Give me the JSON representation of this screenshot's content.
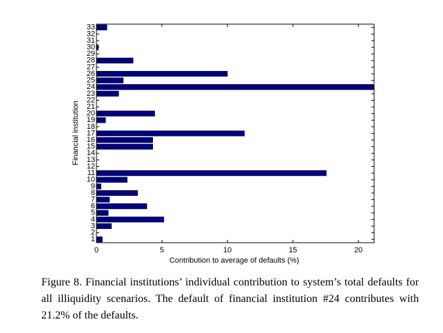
{
  "chart_data": {
    "type": "hbar",
    "xlabel": "Contribution to average of defaults (%)",
    "ylabel": "Financial institution",
    "categories": [
      "1",
      "2",
      "3",
      "4",
      "5",
      "6",
      "7",
      "8",
      "9",
      "10",
      "11",
      "12",
      "13",
      "14",
      "15",
      "16",
      "17",
      "18",
      "19",
      "20",
      "21",
      "22",
      "23",
      "24",
      "25",
      "26",
      "27",
      "28",
      "29",
      "30",
      "31",
      "32",
      "33"
    ],
    "values": [
      0.45,
      0,
      1.15,
      5.15,
      0.9,
      3.85,
      1.0,
      3.15,
      0.35,
      2.35,
      17.55,
      0,
      0,
      0,
      4.3,
      4.3,
      11.3,
      0,
      0.7,
      4.45,
      0,
      0,
      1.7,
      21.2,
      2.05,
      10.0,
      0,
      2.8,
      0,
      0.15,
      0,
      0,
      0.8
    ],
    "color": "#000080",
    "xlim": [
      0,
      21.2
    ],
    "xticks": [
      0,
      5,
      10,
      15,
      20
    ]
  },
  "caption": "Figure 8. Financial institutions’ individual contribution to system’s total defaults for all illiquidity scenarios. The default of financial institution #24 contributes with 21.2% of the defaults."
}
